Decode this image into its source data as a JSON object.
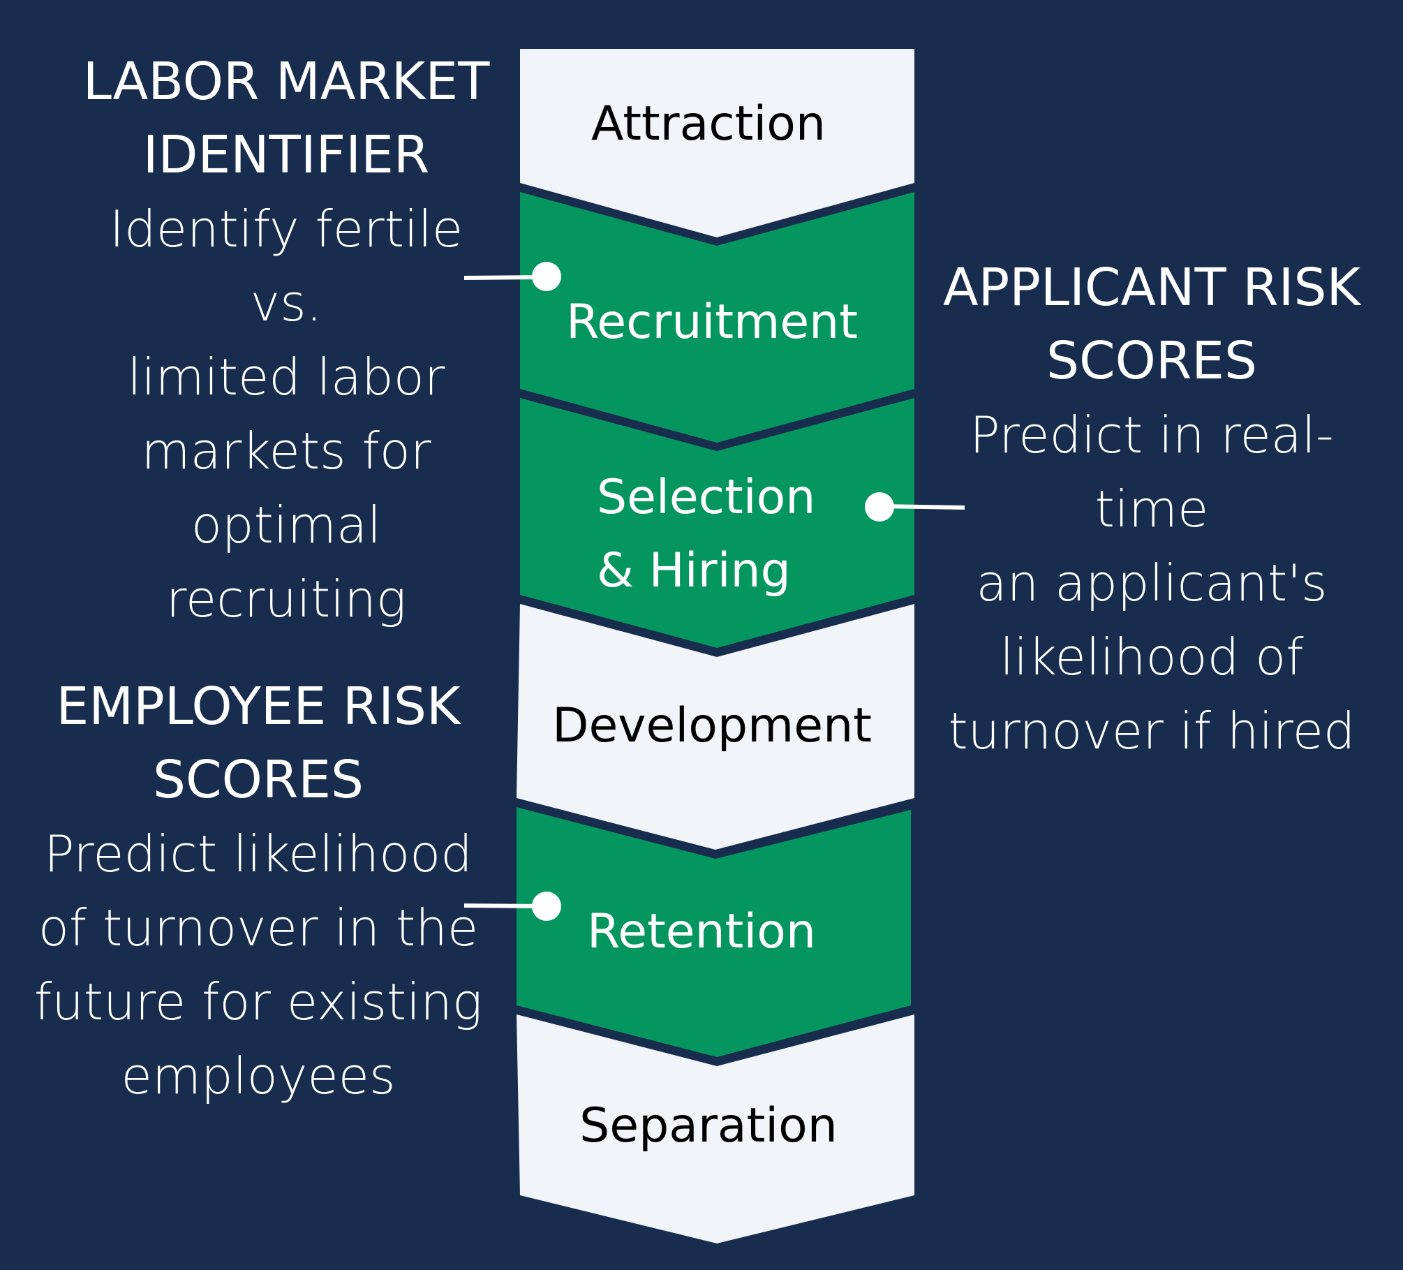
{
  "stages": [
    {
      "label": "Attraction",
      "color": "#f1f4f8",
      "text_color": "#000000"
    },
    {
      "label": "Recruitment",
      "color": "#04965e",
      "text_color": "#ffffff"
    },
    {
      "label": "Selection",
      "label2": "& Hiring",
      "color": "#04965e",
      "text_color": "#ffffff"
    },
    {
      "label": "Development",
      "color": "#f1f4f8",
      "text_color": "#000000"
    },
    {
      "label": "Retention",
      "color": "#04965e",
      "text_color": "#ffffff"
    },
    {
      "label": "Separation",
      "color": "#f1f4f8",
      "text_color": "#000000"
    }
  ],
  "annotations": {
    "labor_market": {
      "heading": [
        "LABOR MARKET",
        "IDENTIFIER"
      ],
      "body": [
        "Identify fertile vs.",
        "limited labor",
        "markets for",
        "optimal recruiting"
      ]
    },
    "applicant_risk": {
      "heading": [
        "APPLICANT RISK",
        "SCORES"
      ],
      "body": [
        "Predict in real-time",
        "an applicant's",
        "likelihood of",
        "turnover if hired"
      ]
    },
    "employee_risk": {
      "heading": [
        "EMPLOYEE RISK",
        "SCORES"
      ],
      "body": [
        "Predict likelihood",
        "of turnover in the",
        "future for existing",
        "employees"
      ]
    }
  },
  "colors": {
    "background": "#182c4e",
    "green": "#04965e",
    "light": "#f1f4f8",
    "connector": "#ffffff"
  }
}
